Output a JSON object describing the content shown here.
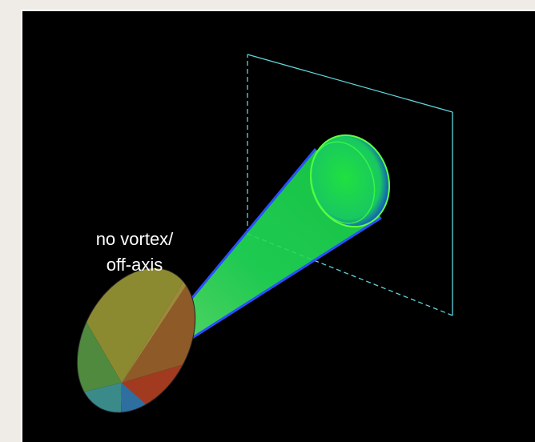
{
  "annotation": {
    "lines": [
      "no vortex/",
      "off-axis"
    ]
  }
}
